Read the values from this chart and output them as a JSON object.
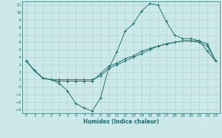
{
  "xlabel": "Humidex (Indice chaleur)",
  "xlim": [
    -0.5,
    23.5
  ],
  "ylim": [
    -3.5,
    11.5
  ],
  "xticks": [
    0,
    1,
    2,
    3,
    4,
    5,
    6,
    7,
    8,
    9,
    10,
    11,
    12,
    13,
    14,
    15,
    16,
    17,
    18,
    19,
    20,
    21,
    22,
    23
  ],
  "yticks": [
    -3,
    -2,
    -1,
    0,
    1,
    2,
    3,
    4,
    5,
    6,
    7,
    8,
    9,
    10,
    11
  ],
  "bg_color": "#cce8e8",
  "line_color": "#1a6b6b",
  "grid_color": "#aad4d4",
  "line1_x": [
    0,
    1,
    2,
    3,
    4,
    5,
    6,
    7,
    8,
    9,
    10,
    11,
    12,
    13,
    14,
    15,
    16,
    17,
    18,
    19,
    20,
    21,
    22,
    23
  ],
  "line1_y": [
    3.5,
    2.2,
    1.2,
    1.0,
    0.5,
    -0.5,
    -2.2,
    -2.8,
    -3.2,
    -1.5,
    2.5,
    4.7,
    7.5,
    8.5,
    10.2,
    11.2,
    11.0,
    8.8,
    7.0,
    6.5,
    6.5,
    6.2,
    4.8,
    3.5
  ],
  "line2_x": [
    0,
    1,
    2,
    3,
    4,
    5,
    6,
    7,
    8,
    9,
    10,
    11,
    12,
    13,
    14,
    15,
    16,
    17,
    18,
    19,
    20,
    21,
    22,
    23
  ],
  "line2_y": [
    3.5,
    2.2,
    1.2,
    1.0,
    1.0,
    1.0,
    1.0,
    1.0,
    1.0,
    1.5,
    2.5,
    3.0,
    3.5,
    4.0,
    4.5,
    5.0,
    5.5,
    5.8,
    6.0,
    6.2,
    6.2,
    6.2,
    5.8,
    3.5
  ],
  "line3_x": [
    0,
    1,
    2,
    3,
    4,
    5,
    6,
    7,
    8,
    9,
    10,
    11,
    12,
    13,
    14,
    15,
    16,
    17,
    18,
    19,
    20,
    21,
    22,
    23
  ],
  "line3_y": [
    3.5,
    2.2,
    1.2,
    1.0,
    0.8,
    0.8,
    0.8,
    0.8,
    0.8,
    1.8,
    2.8,
    3.2,
    3.8,
    4.2,
    4.8,
    5.2,
    5.5,
    5.8,
    6.0,
    6.2,
    6.2,
    6.0,
    5.5,
    3.5
  ]
}
